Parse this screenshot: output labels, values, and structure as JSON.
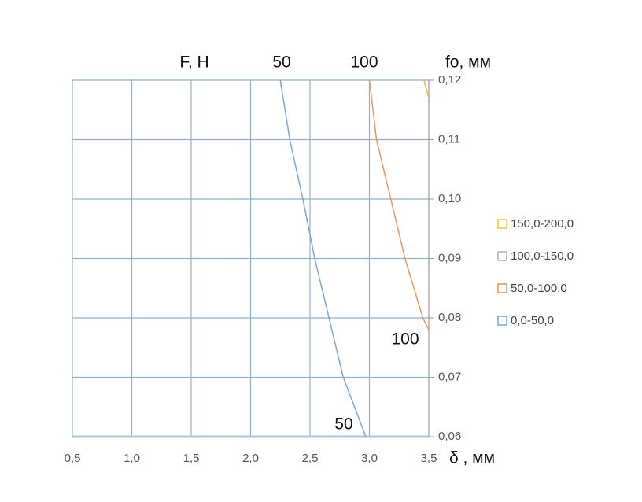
{
  "chart_data": {
    "type": "contour",
    "annotations": [
      "F, H",
      "50",
      "100",
      "fo, мм",
      "100",
      "50",
      "δ , мм"
    ],
    "xlim": [
      0.5,
      3.5
    ],
    "xticks": [
      {
        "value": 0.5,
        "label": "0,5"
      },
      {
        "value": 1.0,
        "label": "1,0"
      },
      {
        "value": 1.5,
        "label": "1,5"
      },
      {
        "value": 2.0,
        "label": "2,0"
      },
      {
        "value": 2.5,
        "label": "2,5"
      },
      {
        "value": 3.0,
        "label": "3,0"
      },
      {
        "value": 3.5,
        "label": "3,5"
      }
    ],
    "ylim": [
      0.06,
      0.12
    ],
    "yticks": [
      {
        "value": 0.06,
        "label": "0,06"
      },
      {
        "value": 0.07,
        "label": "0,07"
      },
      {
        "value": 0.08,
        "label": "0,08"
      },
      {
        "value": 0.09,
        "label": "0,09"
      },
      {
        "value": 0.1,
        "label": "0,10"
      },
      {
        "value": 0.11,
        "label": "0,11"
      },
      {
        "value": 0.12,
        "label": "0,12"
      }
    ],
    "grid": true,
    "series": [
      {
        "name": "150,0-200,0",
        "color": "#f2c200"
      },
      {
        "name": "100,0-150,0",
        "color": "#a5a5a5"
      },
      {
        "name": "50,0-100,0",
        "color": "#ed7d31"
      },
      {
        "name": "0,0-50,0",
        "color": "#5b9bd5"
      }
    ],
    "contours": [
      {
        "color": "#7fa7c8",
        "x": [
          2.25,
          2.33,
          2.44,
          2.54,
          2.66,
          2.78,
          2.97
        ],
        "y": [
          0.12,
          0.11,
          0.1,
          0.09,
          0.08,
          0.07,
          0.06
        ]
      },
      {
        "color": "#e39a62",
        "x": [
          3.0,
          3.06,
          3.18,
          3.3,
          3.45,
          3.5
        ],
        "y": [
          0.12,
          0.11,
          0.1,
          0.09,
          0.08,
          0.078
        ]
      },
      {
        "color": "#e8b84a",
        "x": [
          3.46,
          3.5
        ],
        "y": [
          0.12,
          0.117
        ]
      }
    ]
  }
}
